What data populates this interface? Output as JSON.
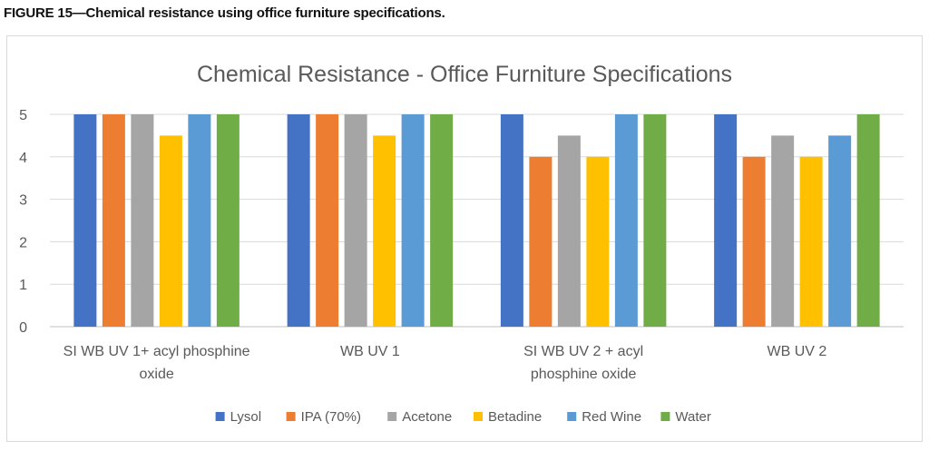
{
  "figure": {
    "caption": "FIGURE 15—Chemical resistance using office furniture specifications."
  },
  "chart_data": {
    "type": "bar",
    "title": "Chemical Resistance - Office Furniture Specifications",
    "xlabel": "",
    "ylabel": "",
    "ylim": [
      0,
      5
    ],
    "yticks": [
      0,
      1,
      2,
      3,
      4,
      5
    ],
    "grid": true,
    "legend_position": "bottom",
    "categories": [
      [
        "SI WB UV 1+ acyl phosphine",
        "oxide"
      ],
      [
        "WB UV 1"
      ],
      [
        "SI WB UV 2 + acyl",
        "phosphine oxide"
      ],
      [
        "WB UV 2"
      ]
    ],
    "series": [
      {
        "name": "Lysol",
        "color": "#4472C4",
        "values": [
          5,
          5,
          5,
          5
        ]
      },
      {
        "name": "IPA (70%)",
        "color": "#ED7D31",
        "values": [
          5,
          5,
          4,
          4
        ]
      },
      {
        "name": "Acetone",
        "color": "#A5A5A5",
        "values": [
          5,
          5,
          4.5,
          4.5
        ]
      },
      {
        "name": "Betadine",
        "color": "#FFC000",
        "values": [
          4.5,
          4.5,
          4,
          4
        ]
      },
      {
        "name": "Red Wine",
        "color": "#5B9BD5",
        "values": [
          5,
          5,
          5,
          4.5
        ]
      },
      {
        "name": "Water",
        "color": "#70AD47",
        "values": [
          5,
          5,
          5,
          5
        ]
      }
    ]
  }
}
